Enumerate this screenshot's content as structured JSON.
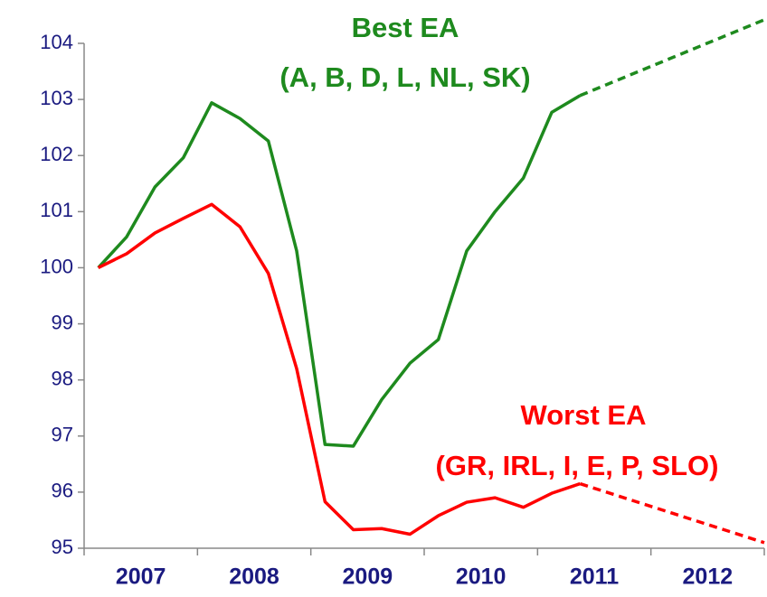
{
  "chart_data": {
    "type": "line",
    "annotations": [
      {
        "text": "Best EA",
        "color": "#1e8a1e"
      },
      {
        "text": "(A, B, D, L, NL, SK)",
        "color": "#1e8a1e"
      },
      {
        "text": "Worst EA",
        "color": "#ff0000"
      },
      {
        "text": "(GR, IRL, I, E, P, SLO)",
        "color": "#ff0000"
      }
    ],
    "categories": [
      "2007",
      "2008",
      "2009",
      "2010",
      "2011",
      "2012"
    ],
    "xlim": [
      2007,
      2013
    ],
    "xticks": [
      2007,
      2008,
      2009,
      2010,
      2011,
      2012,
      2013
    ],
    "ylim": [
      95,
      104
    ],
    "yticks": [
      95,
      96,
      97,
      98,
      99,
      100,
      101,
      102,
      103,
      104
    ],
    "series": [
      {
        "color": "#1e8a1e",
        "dashed": false,
        "x": [
          2007.125,
          2007.375,
          2007.625,
          2007.875,
          2008.125,
          2008.375,
          2008.625,
          2008.875,
          2009.125,
          2009.375,
          2009.625,
          2009.875,
          2010.125,
          2010.375,
          2010.625,
          2010.875,
          2011.125,
          2011.375
        ],
        "values": [
          100,
          100.55,
          101.44,
          101.96,
          102.94,
          102.66,
          102.26,
          100.3,
          96.85,
          96.82,
          97.65,
          98.3,
          98.72,
          100.3,
          101.0,
          101.6,
          102.77,
          103.07
        ]
      },
      {
        "color": "#1e8a1e",
        "dashed": true,
        "x": [
          2011.375,
          2013
        ],
        "values": [
          103.07,
          104.42
        ]
      },
      {
        "color": "#ff0000",
        "dashed": false,
        "x": [
          2007.125,
          2007.375,
          2007.625,
          2007.875,
          2008.125,
          2008.375,
          2008.625,
          2008.875,
          2009.125,
          2009.375,
          2009.625,
          2009.875,
          2010.125,
          2010.375,
          2010.625,
          2010.875,
          2011.125,
          2011.375
        ],
        "values": [
          100,
          100.25,
          100.62,
          100.88,
          101.13,
          100.73,
          99.9,
          98.2,
          95.83,
          95.33,
          95.35,
          95.25,
          95.58,
          95.82,
          95.9,
          95.73,
          95.98,
          96.15
        ]
      },
      {
        "color": "#ff0000",
        "dashed": true,
        "x": [
          2011.375,
          2013
        ],
        "values": [
          96.15,
          95.1
        ]
      }
    ]
  }
}
